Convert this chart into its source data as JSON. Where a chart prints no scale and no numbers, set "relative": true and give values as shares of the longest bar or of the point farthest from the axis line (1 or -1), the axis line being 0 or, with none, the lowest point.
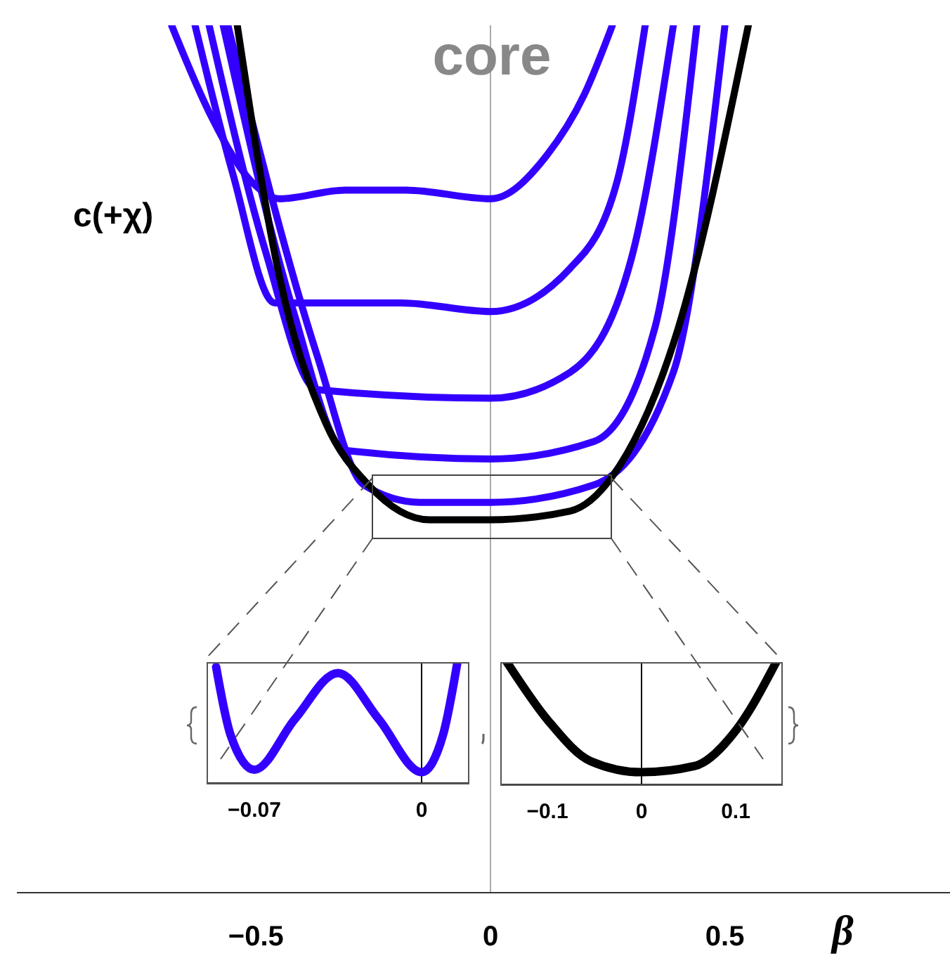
{
  "chart_data": [
    {
      "type": "line",
      "title": "core",
      "ylabel": "c(+χ)",
      "xlabel": "β",
      "relative": true,
      "xlim": [
        -1.01,
        0.98
      ],
      "xticks": [
        {
          "value": -0.5,
          "label": "−0.5"
        },
        0,
        0.5
      ],
      "legend": false,
      "grid": false,
      "marker": "none",
      "ref_lines": [
        {
          "axis": "x",
          "value": 0,
          "color": "#aaaaaa"
        }
      ],
      "series": [
        {
          "color": "#3300ff",
          "x": [
            -0.68,
            -0.6,
            -0.51,
            -0.45,
            -0.31,
            -0.18,
            0,
            0.12,
            0.2,
            0.26
          ],
          "values": [
            1,
            0.9,
            0.82,
            0.8,
            0.81,
            0.81,
            0.8,
            0.85,
            0.92,
            1
          ]
        },
        {
          "color": "#3300ff",
          "x": [
            -0.63,
            -0.55,
            -0.46,
            -0.42,
            -0.19,
            0,
            0.17,
            0.27,
            0.33
          ],
          "values": [
            1,
            0.83,
            0.68,
            0.68,
            0.68,
            0.67,
            0.72,
            0.82,
            1
          ]
        },
        {
          "color": "#3300ff",
          "x": [
            -0.6,
            -0.48,
            -0.37,
            0,
            0.17,
            0.3,
            0.39
          ],
          "values": [
            1,
            0.74,
            0.58,
            0.57,
            0.6,
            0.73,
            1
          ]
        },
        {
          "color": "#3300ff",
          "x": [
            -0.57,
            -0.42,
            -0.31,
            0,
            0.22,
            0.35,
            0.44
          ],
          "values": [
            1,
            0.67,
            0.51,
            0.5,
            0.52,
            0.65,
            1
          ]
        },
        {
          "color": "#3300ff",
          "x": [
            -0.56,
            -0.37,
            -0.27,
            -0.15,
            0,
            0.22,
            0.39,
            0.5
          ],
          "values": [
            1,
            0.62,
            0.47,
            0.45,
            0.45,
            0.47,
            0.6,
            1
          ]
        },
        {
          "color": "#000000",
          "x": [
            -0.54,
            -0.45,
            -0.35,
            -0.26,
            -0.13,
            0,
            0.17,
            0.26,
            0.4,
            0.55
          ],
          "values": [
            1,
            0.71,
            0.54,
            0.47,
            0.43,
            0.43,
            0.44,
            0.48,
            0.65,
            1
          ]
        }
      ]
    },
    {
      "type": "line",
      "relative": true,
      "xlim": [
        -0.09,
        0.02
      ],
      "xticks": [
        {
          "value": -0.07,
          "label": "−0.07"
        },
        0
      ],
      "legend": false,
      "grid": false,
      "marker": "none",
      "ref_lines": [
        {
          "axis": "x",
          "value": 0,
          "color": "#000000"
        }
      ],
      "series": [
        {
          "color": "#3300ff",
          "x": [
            -0.086,
            -0.08,
            -0.07,
            -0.053,
            -0.035,
            -0.018,
            0,
            0.009,
            0.015
          ],
          "values": [
            0.96,
            0.4,
            0.11,
            0.53,
            0.91,
            0.53,
            0.09,
            0.4,
            1
          ]
        }
      ]
    },
    {
      "type": "line",
      "relative": true,
      "xlim": [
        -0.15,
        0.15
      ],
      "xticks": [
        {
          "value": -0.1,
          "label": "−0.1"
        },
        0,
        0.1
      ],
      "legend": false,
      "grid": false,
      "marker": "none",
      "ref_lines": [
        {
          "axis": "x",
          "value": 0,
          "color": "#000000"
        }
      ],
      "series": [
        {
          "color": "#000000",
          "x": [
            -0.143,
            -0.099,
            -0.054,
            0,
            0.056,
            0.1,
            0.143
          ],
          "values": [
            1,
            0.52,
            0.19,
            0.1,
            0.15,
            0.44,
            1
          ]
        }
      ]
    }
  ]
}
